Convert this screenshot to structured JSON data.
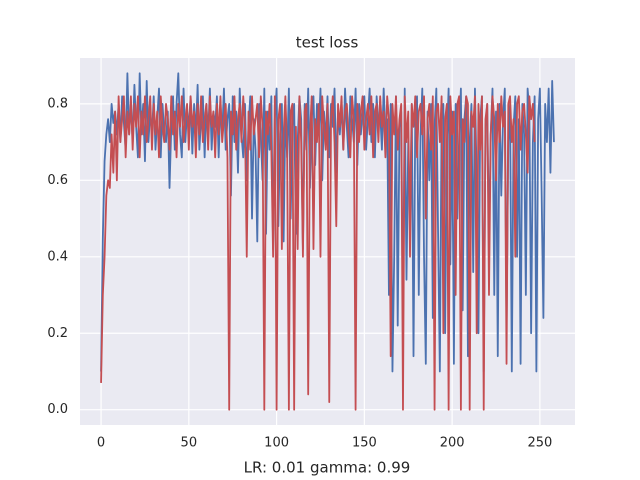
{
  "chart_data": {
    "type": "line",
    "title": "test loss",
    "x_label": "LR: 0.01 gamma: 0.99",
    "xlim": [
      -12,
      270
    ],
    "ylim": [
      -0.04,
      0.92
    ],
    "xticks": [
      0,
      50,
      100,
      150,
      200,
      250
    ],
    "yticks": [
      {
        "value": 0,
        "label": "0.0"
      },
      0.2,
      0.4,
      0.6,
      0.8
    ],
    "grid": true,
    "background": "#eaeaf2",
    "series": [
      {
        "color": "#4c72b0",
        "values": [
          0.1,
          0.45,
          0.65,
          0.72,
          0.76,
          0.7,
          0.8,
          0.75,
          0.78,
          0.72,
          0.8,
          0.7,
          0.82,
          0.75,
          0.68,
          0.88,
          0.72,
          0.8,
          0.7,
          0.85,
          0.74,
          0.66,
          0.88,
          0.72,
          0.8,
          0.65,
          0.86,
          0.7,
          0.78,
          0.72,
          0.82,
          0.68,
          0.76,
          0.84,
          0.66,
          0.8,
          0.72,
          0.7,
          0.78,
          0.58,
          0.74,
          0.82,
          0.68,
          0.8,
          0.88,
          0.72,
          0.66,
          0.84,
          0.7,
          0.78,
          0.74,
          0.82,
          0.67,
          0.8,
          0.72,
          0.85,
          0.68,
          0.76,
          0.82,
          0.66,
          0.8,
          0.72,
          0.84,
          0.68,
          0.78,
          0.74,
          0.82,
          0.66,
          0.8,
          0.72,
          0.84,
          0.68,
          0.76,
          0.8,
          0.56,
          0.82,
          0.7,
          0.78,
          0.62,
          0.84,
          0.72,
          0.66,
          0.8,
          0.6,
          0.74,
          0.82,
          0.5,
          0.76,
          0.68,
          0.44,
          0.8,
          0.72,
          0.6,
          0.84,
          0.46,
          0.78,
          0.68,
          0.82,
          0.42,
          0.76,
          0.84,
          0.48,
          0.72,
          0.8,
          0.44,
          0.78,
          0.66,
          0.84,
          0.5,
          0.74,
          0.8,
          0.46,
          0.7,
          0.82,
          0.76,
          0.42,
          0.8,
          0.68,
          0.84,
          0.58,
          0.76,
          0.82,
          0.64,
          0.8,
          0.72,
          0.84,
          0.6,
          0.78,
          0.7,
          0.82,
          0.66,
          0.8,
          0.74,
          0.84,
          0.62,
          0.78,
          0.72,
          0.8,
          0.68,
          0.84,
          0.74,
          0.66,
          0.82,
          0.76,
          0.7,
          0.84,
          0.64,
          0.8,
          0.72,
          0.78,
          0.82,
          0.68,
          0.76,
          0.84,
          0.7,
          0.8,
          0.66,
          0.82,
          0.74,
          0.78,
          0.68,
          0.84,
          0.72,
          0.76,
          0.3,
          0.8,
          0.1,
          0.4,
          0.82,
          0.22,
          0.74,
          0.78,
          0.2,
          0.84,
          0.34,
          0.7,
          0.5,
          0.8,
          0.14,
          0.76,
          0.82,
          0.3,
          0.72,
          0.84,
          0.4,
          0.12,
          0.78,
          0.6,
          0.8,
          0.24,
          0.74,
          0.84,
          0.46,
          0.1,
          0.76,
          0.8,
          0.2,
          0.7,
          0.84,
          0.38,
          0.78,
          0.12,
          0.8,
          0.5,
          0.72,
          0.84,
          0.26,
          0.76,
          0.82,
          0.14,
          0.7,
          0.8,
          0.36,
          0.84,
          0.6,
          0.2,
          0.76,
          0.82,
          0.1,
          0.74,
          0.8,
          0.44,
          0.72,
          0.84,
          0.3,
          0.78,
          0.14,
          0.8,
          0.56,
          0.76,
          0.84,
          0.22,
          0.7,
          0.8,
          0.1,
          0.74,
          0.82,
          0.4,
          0.76,
          0.12,
          0.8,
          0.72,
          0.3,
          0.84,
          0.78,
          0.2,
          0.7,
          0.82,
          0.1,
          0.76,
          0.84,
          0.56,
          0.24,
          0.8,
          0.7,
          0.84,
          0.62,
          0.86,
          0.7
        ]
      },
      {
        "color": "#c44e52",
        "values": [
          0.07,
          0.3,
          0.4,
          0.56,
          0.6,
          0.58,
          0.72,
          0.62,
          0.78,
          0.6,
          0.82,
          0.7,
          0.76,
          0.82,
          0.66,
          0.78,
          0.72,
          0.82,
          0.68,
          0.8,
          0.74,
          0.82,
          0.66,
          0.78,
          0.72,
          0.82,
          0.7,
          0.76,
          0.82,
          0.68,
          0.8,
          0.72,
          0.78,
          0.66,
          0.82,
          0.74,
          0.7,
          0.8,
          0.76,
          0.68,
          0.82,
          0.72,
          0.78,
          0.66,
          0.8,
          0.74,
          0.82,
          0.7,
          0.76,
          0.8,
          0.68,
          0.82,
          0.74,
          0.78,
          0.66,
          0.8,
          0.72,
          0.82,
          0.7,
          0.76,
          0.8,
          0.68,
          0.82,
          0.74,
          0.78,
          0.66,
          0.8,
          0.72,
          0.82,
          0.7,
          0.76,
          0.8,
          0.66,
          0.0,
          0.78,
          0.72,
          0.82,
          0.68,
          0.76,
          0.8,
          0.7,
          0.82,
          0.74,
          0.4,
          0.78,
          0.68,
          0.82,
          0.72,
          0.76,
          0.8,
          0.66,
          0.82,
          0.74,
          0.0,
          0.78,
          0.72,
          0.8,
          0.68,
          0.4,
          0.82,
          0.0,
          0.76,
          0.8,
          0.42,
          0.72,
          0.82,
          0.68,
          0.0,
          0.78,
          0.8,
          0.0,
          0.74,
          0.42,
          0.82,
          0.7,
          0.4,
          0.78,
          0.8,
          0.04,
          0.72,
          0.82,
          0.42,
          0.76,
          0.7,
          0.8,
          0.4,
          0.82,
          0.74,
          0.68,
          0.8,
          0.02,
          0.76,
          0.82,
          0.7,
          0.48,
          0.8,
          0.74,
          0.82,
          0.68,
          0.78,
          0.8,
          0.72,
          0.66,
          0.82,
          0.76,
          0.0,
          0.8,
          0.7,
          0.78,
          0.82,
          0.68,
          0.76,
          0.8,
          0.72,
          0.82,
          0.66,
          0.78,
          0.8,
          0.7,
          0.82,
          0.74,
          0.78,
          0.66,
          0.82,
          0.76,
          0.14,
          0.8,
          0.72,
          0.82,
          0.68,
          0.76,
          0.8,
          0.0,
          0.82,
          0.7,
          0.78,
          0.4,
          0.8,
          0.74,
          0.82,
          0.66,
          0.78,
          0.8,
          0.72,
          0.82,
          0.5,
          0.76,
          0.8,
          0.68,
          0.82,
          0.0,
          0.78,
          0.8,
          0.7,
          0.82,
          0.2,
          0.76,
          0.8,
          0.0,
          0.82,
          0.72,
          0.78,
          0.3,
          0.8,
          0.82,
          0.0,
          0.76,
          0.7,
          0.82,
          0.8,
          0.0,
          0.78,
          0.74,
          0.82,
          0.2,
          0.8,
          0.68,
          0.82,
          0.0,
          0.76,
          0.8,
          0.3,
          0.72,
          0.82,
          0.76,
          0.6,
          0.8,
          0.7,
          0.82,
          0.74,
          0.78,
          0.12,
          0.8,
          0.82,
          0.7,
          0.76,
          0.4,
          0.8,
          0.82,
          0.68,
          0.78,
          0.8,
          0.72,
          0.62,
          0.82,
          0.76,
          0.8,
          0.7
        ]
      }
    ]
  }
}
